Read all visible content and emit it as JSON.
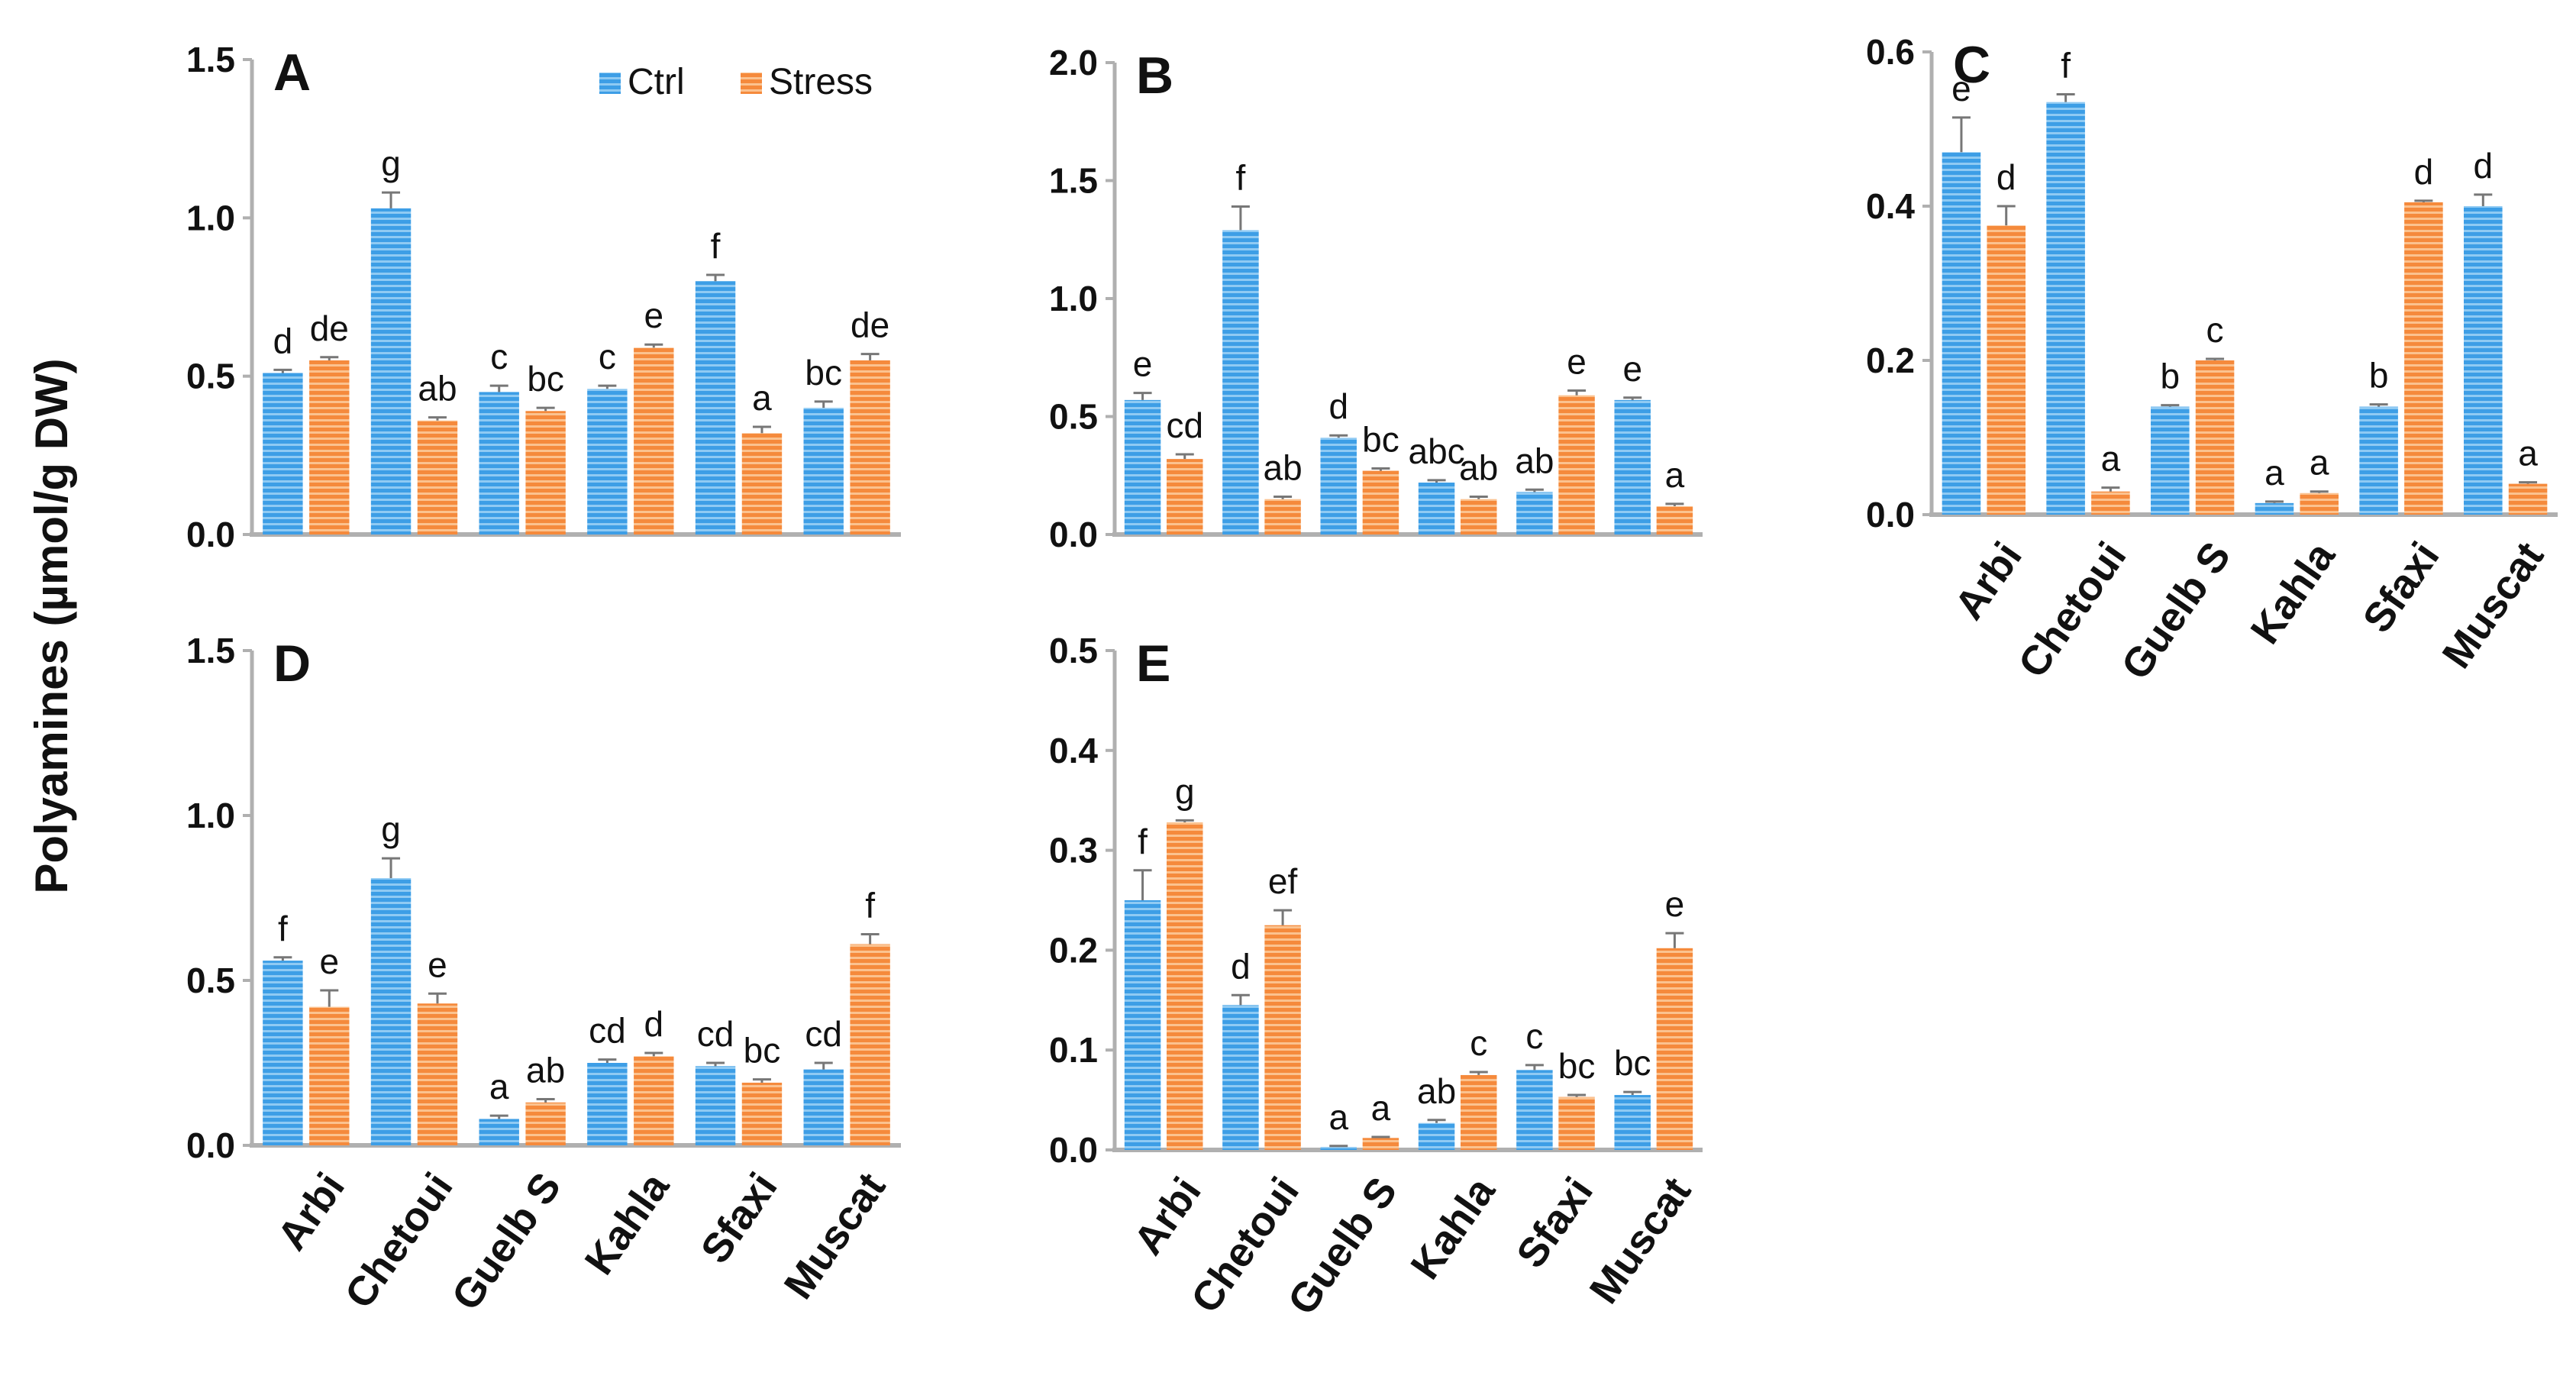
{
  "y_axis_title": "Polyamines (µmol/g DW)",
  "legend": [
    {
      "label": "Ctrl",
      "color": "#3d9ee6"
    },
    {
      "label": "Stress",
      "color": "#f58a3c"
    }
  ],
  "colors": {
    "ctrl": "#3d9ee6",
    "stress": "#f58a3c",
    "axis": "#b0b0b0",
    "error": "#777777"
  },
  "chart_data": [
    {
      "panel": "A",
      "type": "bar",
      "categories": [
        "Arbi",
        "Chetoui",
        "Guelb S",
        "Kahla",
        "Sfaxi",
        "Muscat"
      ],
      "ylim": [
        0,
        1.5
      ],
      "yticks": [
        "0.0",
        "0.5",
        "1.0",
        "1.5"
      ],
      "series": [
        {
          "name": "Ctrl",
          "values": [
            0.51,
            1.03,
            0.45,
            0.46,
            0.8,
            0.4
          ],
          "errors": [
            0.01,
            0.05,
            0.02,
            0.01,
            0.02,
            0.02
          ],
          "labels": [
            "d",
            "g",
            "c",
            "c",
            "f",
            "bc"
          ]
        },
        {
          "name": "Stress",
          "values": [
            0.55,
            0.36,
            0.39,
            0.59,
            0.32,
            0.55
          ],
          "errors": [
            0.01,
            0.01,
            0.01,
            0.01,
            0.02,
            0.02
          ],
          "labels": [
            "de",
            "ab",
            "bc",
            "e",
            "a",
            "de"
          ]
        }
      ]
    },
    {
      "panel": "B",
      "type": "bar",
      "categories": [
        "Arbi",
        "Chetoui",
        "Guelb S",
        "Kahla",
        "Sfaxi",
        "Muscat"
      ],
      "ylim": [
        0,
        2.0
      ],
      "yticks": [
        "0.0",
        "0.5",
        "1.0",
        "1.5",
        "2.0"
      ],
      "series": [
        {
          "name": "Ctrl",
          "values": [
            0.57,
            1.29,
            0.41,
            0.22,
            0.18,
            0.57
          ],
          "errors": [
            0.03,
            0.1,
            0.01,
            0.01,
            0.01,
            0.01
          ],
          "labels": [
            "e",
            "f",
            "d",
            "abc",
            "ab",
            "e"
          ]
        },
        {
          "name": "Stress",
          "values": [
            0.32,
            0.15,
            0.27,
            0.15,
            0.59,
            0.12
          ],
          "errors": [
            0.02,
            0.01,
            0.01,
            0.01,
            0.02,
            0.01
          ],
          "labels": [
            "cd",
            "ab",
            "bc",
            "ab",
            "e",
            "a"
          ]
        }
      ]
    },
    {
      "panel": "C",
      "type": "bar",
      "categories": [
        "Arbi",
        "Chetoui",
        "Guelb S",
        "Kahla",
        "Sfaxi",
        "Muscat"
      ],
      "ylim": [
        0,
        0.6
      ],
      "yticks": [
        "0.0",
        "0.2",
        "0.4",
        "0.6"
      ],
      "series": [
        {
          "name": "Ctrl",
          "values": [
            0.47,
            0.535,
            0.14,
            0.015,
            0.14,
            0.4
          ],
          "errors": [
            0.045,
            0.01,
            0.002,
            0.002,
            0.003,
            0.015
          ],
          "labels": [
            "e",
            "f",
            "b",
            "a",
            "b",
            "d"
          ]
        },
        {
          "name": "Stress",
          "values": [
            0.375,
            0.03,
            0.2,
            0.028,
            0.405,
            0.04
          ],
          "errors": [
            0.025,
            0.005,
            0.002,
            0.002,
            0.002,
            0.002
          ],
          "labels": [
            "d",
            "a",
            "c",
            "a",
            "d",
            "a"
          ]
        }
      ]
    },
    {
      "panel": "D",
      "type": "bar",
      "categories": [
        "Arbi",
        "Chetoui",
        "Guelb S",
        "Kahla",
        "Sfaxi",
        "Muscat"
      ],
      "ylim": [
        0,
        1.5
      ],
      "yticks": [
        "0.0",
        "0.5",
        "1.0",
        "1.5"
      ],
      "series": [
        {
          "name": "Ctrl",
          "values": [
            0.56,
            0.81,
            0.08,
            0.25,
            0.24,
            0.23
          ],
          "errors": [
            0.01,
            0.06,
            0.01,
            0.01,
            0.01,
            0.02
          ],
          "labels": [
            "f",
            "g",
            "a",
            "cd",
            "cd",
            "cd"
          ]
        },
        {
          "name": "Stress",
          "values": [
            0.42,
            0.43,
            0.13,
            0.27,
            0.19,
            0.61
          ],
          "errors": [
            0.05,
            0.03,
            0.01,
            0.01,
            0.01,
            0.03
          ],
          "labels": [
            "e",
            "e",
            "ab",
            "d",
            "bc",
            "f"
          ]
        }
      ]
    },
    {
      "panel": "E",
      "type": "bar",
      "categories": [
        "Arbi",
        "Chetoui",
        "Guelb S",
        "Kahla",
        "Sfaxi",
        "Muscat"
      ],
      "ylim": [
        0,
        0.5
      ],
      "yticks": [
        "0.0",
        "0.1",
        "0.2",
        "0.3",
        "0.4",
        "0.5"
      ],
      "series": [
        {
          "name": "Ctrl",
          "values": [
            0.25,
            0.145,
            0.003,
            0.027,
            0.08,
            0.055
          ],
          "errors": [
            0.03,
            0.01,
            0.001,
            0.003,
            0.005,
            0.003
          ],
          "labels": [
            "f",
            "d",
            "a",
            "ab",
            "c",
            "bc"
          ]
        },
        {
          "name": "Stress",
          "values": [
            0.328,
            0.225,
            0.012,
            0.075,
            0.053,
            0.202
          ],
          "errors": [
            0.002,
            0.015,
            0.001,
            0.003,
            0.002,
            0.015
          ],
          "labels": [
            "g",
            "ef",
            "a",
            "c",
            "bc",
            "e"
          ]
        }
      ]
    }
  ]
}
